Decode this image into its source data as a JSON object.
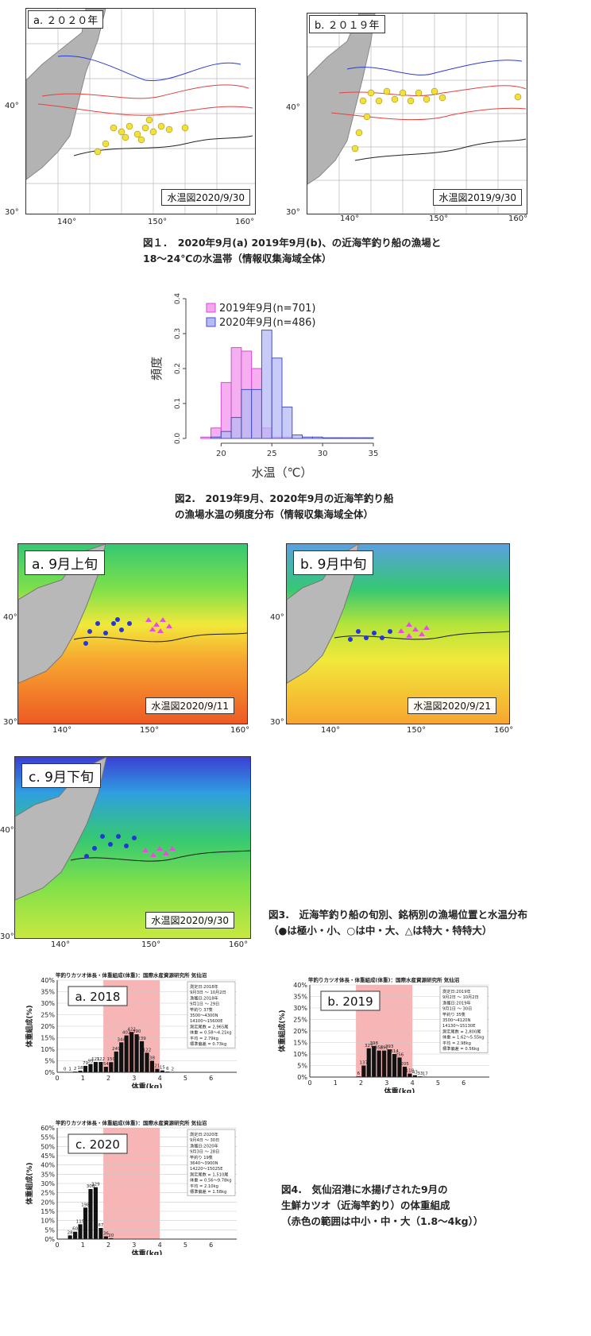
{
  "fig1": {
    "panel_a": {
      "label": "a. ２０２０年",
      "date": "水温図2020/9/30"
    },
    "panel_b": {
      "label": "b. ２０１９年",
      "date": "水温図2019/9/30"
    },
    "lat_ticks": [
      "40°",
      "30°"
    ],
    "lon_ticks": [
      "140°",
      "150°",
      "160°"
    ],
    "isotherms": [
      "18",
      "20",
      "22",
      "24"
    ],
    "caption_line1": "図１．　2020年9月(a) 2019年9月(b)、の近海竿釣り船の漁場と",
    "caption_line2": "18～24℃の水温帯（情報収集海域全体）"
  },
  "fig2": {
    "ylabel": "頻度",
    "xlabel": "水温（℃）",
    "caption_line1": "図2.　2019年9月、2020年9月の近海竿釣り船",
    "caption_line2": "の漁場水温の頻度分布（情報収集海域全体）",
    "chart_data": {
      "type": "bar",
      "xlim": [
        17,
        35
      ],
      "ylim": [
        0,
        0.4
      ],
      "yticks": [
        "0.0",
        "0.1",
        "0.2",
        "0.3",
        "0.4"
      ],
      "xticks": [
        "20",
        "25",
        "30",
        "35"
      ],
      "bin_width": 1,
      "bin_starts": [
        18,
        19,
        20,
        21,
        22,
        23,
        24,
        25,
        26,
        27,
        28,
        29,
        30,
        31,
        32,
        33,
        34
      ],
      "series": [
        {
          "name": "2019年9月(n=701)",
          "color": "#f4a6ee",
          "values": [
            0.004,
            0.03,
            0.16,
            0.26,
            0.25,
            0.2,
            0.03,
            0.004,
            0.004,
            0,
            0,
            0,
            0,
            0,
            0,
            0,
            0
          ]
        },
        {
          "name": "2020年9月(n=486)",
          "color": "#b6b9f4",
          "values": [
            0,
            0.004,
            0.02,
            0.06,
            0.14,
            0.14,
            0.31,
            0.23,
            0.09,
            0.01,
            0.004,
            0.004,
            0.002,
            0.002,
            0.002,
            0.002,
            0.002
          ]
        }
      ],
      "legend_position": "top-left"
    }
  },
  "fig3": {
    "panel_a": {
      "label": "a. 9月上旬",
      "date": "水温図2020/9/11"
    },
    "panel_b": {
      "label": "b. 9月中旬",
      "date": "水温図2020/9/21"
    },
    "panel_c": {
      "label": "c. 9月下旬",
      "date": "水温図2020/9/30"
    },
    "lat_ticks": [
      "40°",
      "30°"
    ],
    "lon_ticks": [
      "140°",
      "150°",
      "160°"
    ],
    "isotherms": [
      "24",
      "28"
    ],
    "caption_line1": "図3.　近海竿釣り船の旬別、銘柄別の漁場位置と水温分布",
    "caption_line2": "（●は極小・小、○は中・大、△は特大・特特大）"
  },
  "fig4": {
    "chart_title": "竿釣りカツオ体長・体重組成(体重)：国際水産資源研究所 気仙沼",
    "ylabel": "体重組成(%)",
    "xlabel": "体重(kg)",
    "xticks": [
      "0",
      "1",
      "2",
      "3",
      "4",
      "5",
      "6"
    ],
    "caption_line1": "図4.　気仙沼港に水揚げされた9月の",
    "caption_line2": "生鮮カツオ（近海竿釣り）の体重組成",
    "caption_line3": "（赤色の範囲は中小・中・大（1.8～4kg））",
    "chart_data": [
      {
        "type": "bar",
        "label": "a. 2018",
        "ylim": [
          0,
          40
        ],
        "yticks": [
          "0%",
          "5%",
          "10%",
          "15%",
          "20%",
          "25%",
          "30%",
          "35%",
          "40%"
        ],
        "highlight_range_kg": [
          1.8,
          4
        ],
        "bin_width_kg": 0.2,
        "bin_starts_kg": [
          0.2,
          0.4,
          0.6,
          0.8,
          1.0,
          1.2,
          1.4,
          1.6,
          1.8,
          2.0,
          2.2,
          2.4,
          2.6,
          2.8,
          3.0,
          3.2,
          3.4,
          3.6,
          3.8,
          4.0,
          4.2,
          4.4
        ],
        "values": [
          0.1,
          0.1,
          0.3,
          0.7,
          2.8,
          3.6,
          4.5,
          4.5,
          2.4,
          4.4,
          9.0,
          13.0,
          16.0,
          17.5,
          16.5,
          13.5,
          8.5,
          5.0,
          1.5,
          0.8,
          0.3,
          0.2
        ],
        "data_labels": [
          "0",
          "1",
          "2",
          "18",
          "79",
          "95",
          "121",
          "122",
          "54",
          "150",
          "249",
          "344",
          "402",
          "422",
          "390",
          "239",
          "122",
          "38",
          "21",
          "15",
          "6",
          "2"
        ],
        "box": [
          "測定日:2018年",
          "9月3日 ～ 10月2日",
          "漁獲日:2018年",
          "9月1日 ～ 29日",
          "竿釣り 37隻",
          "3500～4300N",
          "14100～15600E",
          "測定尾数 = 2,965尾",
          "体重 = 0.58～4.21kg",
          "平均 = 2.79kg",
          "標準偏差 = 0.73kg"
        ]
      },
      {
        "type": "bar",
        "label": "b. 2019",
        "ylim": [
          0,
          40
        ],
        "yticks": [
          "0%",
          "5%",
          "10%",
          "15%",
          "20%",
          "25%",
          "30%",
          "35%",
          "40%"
        ],
        "highlight_range_kg": [
          1.8,
          4
        ],
        "bin_width_kg": 0.2,
        "bin_starts_kg": [
          1.8,
          2.0,
          2.2,
          2.4,
          2.6,
          2.8,
          3.0,
          3.2,
          3.4,
          3.6,
          3.8,
          4.0,
          4.2,
          4.4
        ],
        "values": [
          0.3,
          5.0,
          12.5,
          13.5,
          11.5,
          11.5,
          12.0,
          10.0,
          8.5,
          4.5,
          1.5,
          0.8,
          0.3,
          0.2
        ],
        "data_labels": [
          "6",
          "137",
          "327",
          "398",
          "356",
          "292",
          "293",
          "314",
          "256",
          "205",
          "118",
          "43",
          "33",
          "17"
        ],
        "box": [
          "測定日:2019年",
          "9月2日 ～ 10月2日",
          "漁獲日:2019年",
          "9月1日 ～ 30日",
          "竿釣り 35隻",
          "3500～4120N",
          "14130～15130E",
          "測定尾数 = 2,800尾",
          "体重 = 1.62～5.55kg",
          "平均 = 2.98kg",
          "標準偏差 = 0.56kg"
        ]
      },
      {
        "type": "bar",
        "label": "c. 2020",
        "ylim": [
          0,
          60
        ],
        "yticks": [
          "0%",
          "5%",
          "10%",
          "15%",
          "20%",
          "25%",
          "30%",
          "35%",
          "40%",
          "45%",
          "50%",
          "55%",
          "60%"
        ],
        "highlight_range_kg": [
          1.8,
          4
        ],
        "bin_width_kg": 0.2,
        "bin_starts_kg": [
          0.4,
          0.6,
          0.8,
          1.0,
          1.2,
          1.4,
          1.6,
          1.8,
          2.0
        ],
        "values": [
          2.0,
          4.0,
          8.0,
          17.0,
          27.0,
          28.0,
          6.0,
          1.5,
          0.5
        ],
        "data_labels": [
          "28",
          "60",
          "115",
          "198",
          "308",
          "329",
          "87",
          "36",
          "20"
        ],
        "box": [
          "測定日:2020年",
          "9月4日 ～ 30日",
          "漁獲日:2020年",
          "9月3日 ～ 28日",
          "竿釣り 19隻",
          "3640～3900N",
          "14220～15025E",
          "測定尾数 = 1,510尾",
          "体重 = 0.56～9.78kg",
          "平均 = 2.10kg",
          "標準偏差 = 1.58kg"
        ]
      }
    ]
  }
}
